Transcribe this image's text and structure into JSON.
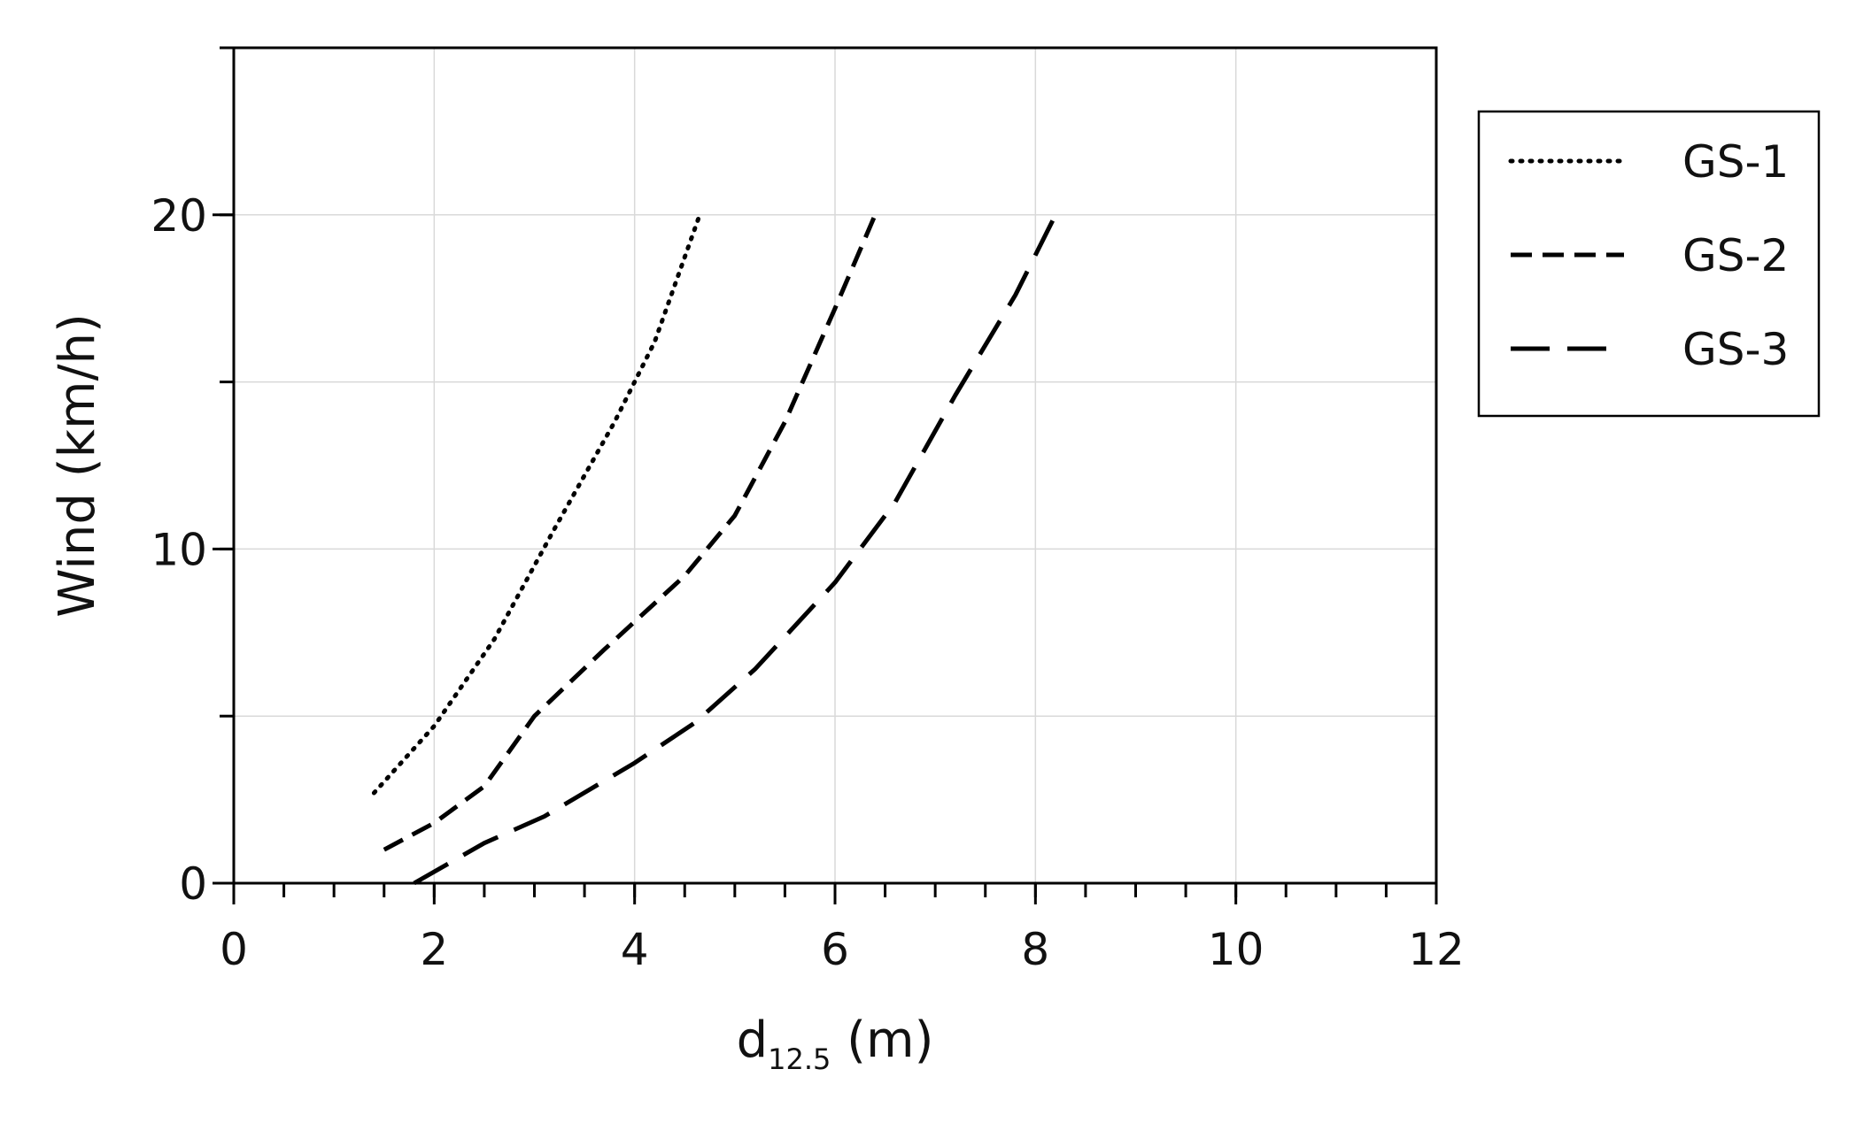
{
  "chart_data": {
    "type": "line",
    "title": "",
    "xlabel": {
      "base": "d",
      "subscript": "12.5",
      "unit": " (m)"
    },
    "ylabel": "Wind (km/h)",
    "xlim": [
      0,
      12
    ],
    "ylim": [
      0,
      25
    ],
    "xticks": [
      "0",
      "2",
      "4",
      "6",
      "8",
      "10",
      "12"
    ],
    "xtick_values": [
      0,
      2,
      4,
      6,
      8,
      10,
      12
    ],
    "yticks": [
      "0",
      "10",
      "20"
    ],
    "ytick_values": [
      0,
      10,
      20
    ],
    "grid": true,
    "legend_position": "right",
    "series": [
      {
        "name": "GS-1",
        "style": "dotted",
        "color": "#000000",
        "points": [
          [
            1.4,
            2.7
          ],
          [
            2.0,
            4.7
          ],
          [
            2.6,
            7.3
          ],
          [
            3.2,
            10.6
          ],
          [
            3.8,
            13.8
          ],
          [
            4.2,
            16.2
          ],
          [
            4.65,
            20.0
          ]
        ]
      },
      {
        "name": "GS-2",
        "style": "dashed",
        "color": "#000000",
        "points": [
          [
            1.5,
            1.0
          ],
          [
            2.0,
            1.8
          ],
          [
            2.5,
            2.9
          ],
          [
            3.0,
            5.0
          ],
          [
            3.7,
            7.0
          ],
          [
            4.5,
            9.2
          ],
          [
            5.0,
            11.0
          ],
          [
            5.5,
            13.8
          ],
          [
            6.0,
            17.2
          ],
          [
            6.4,
            20.0
          ]
        ]
      },
      {
        "name": "GS-3",
        "style": "long-dashed",
        "color": "#000000",
        "points": [
          [
            1.8,
            0.0
          ],
          [
            2.5,
            1.2
          ],
          [
            3.1,
            2.0
          ],
          [
            4.0,
            3.6
          ],
          [
            4.6,
            4.8
          ],
          [
            5.2,
            6.4
          ],
          [
            6.0,
            9.0
          ],
          [
            6.6,
            11.4
          ],
          [
            7.2,
            14.6
          ],
          [
            7.8,
            17.6
          ],
          [
            8.2,
            20.0
          ]
        ]
      }
    ]
  }
}
